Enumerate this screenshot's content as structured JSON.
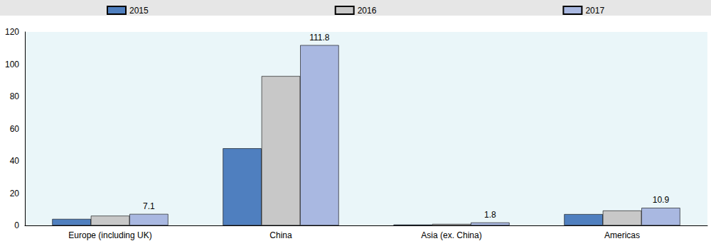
{
  "chart_data": {
    "type": "bar",
    "categories": [
      "Europe (including UK)",
      "China",
      "Asia (ex. China)",
      "Americas"
    ],
    "series": [
      {
        "name": "2015",
        "color": "#4f7fbf",
        "values": [
          4.0,
          47.8,
          0.5,
          7.0
        ]
      },
      {
        "name": "2016",
        "color": "#c8c8c8",
        "values": [
          6.0,
          92.6,
          0.9,
          9.2
        ]
      },
      {
        "name": "2017",
        "color": "#a9b8e1",
        "values": [
          7.1,
          111.8,
          1.8,
          10.9
        ],
        "data_labels": true
      }
    ],
    "ylim": [
      0,
      120
    ],
    "yticks": [
      0,
      20,
      40,
      60,
      80,
      100,
      120
    ],
    "grid": false,
    "legend": "top"
  }
}
